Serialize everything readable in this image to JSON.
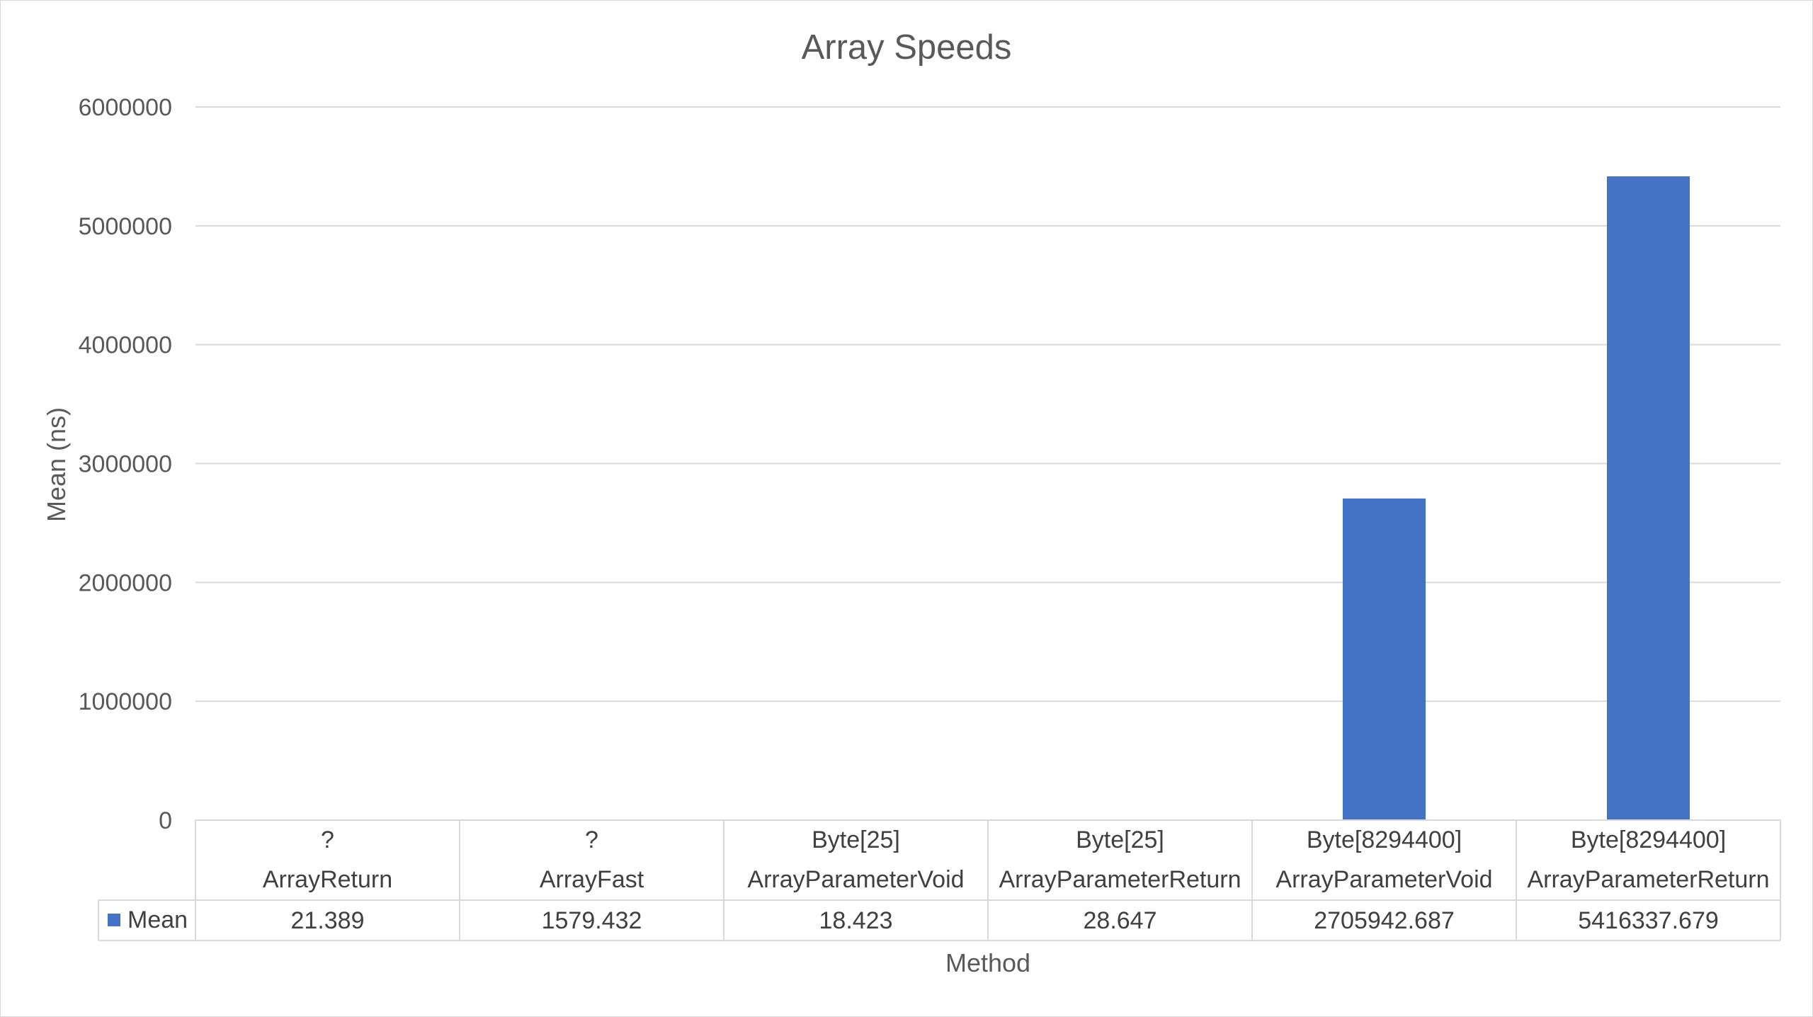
{
  "chart_data": {
    "type": "bar",
    "title": "Array Speeds",
    "xlabel": "Method",
    "ylabel": "Mean (ns)",
    "ylim": [
      0,
      6000000
    ],
    "yticks": [
      "0",
      "1000000",
      "2000000",
      "3000000",
      "4000000",
      "5000000",
      "6000000"
    ],
    "grid": true,
    "legend": "data-table",
    "categories": [
      {
        "group": "?",
        "label": "ArrayReturn"
      },
      {
        "group": "?",
        "label": "ArrayFast"
      },
      {
        "group": "Byte[25]",
        "label": "ArrayParameterVoid"
      },
      {
        "group": "Byte[25]",
        "label": "ArrayParameterReturn"
      },
      {
        "group": "Byte[8294400]",
        "label": "ArrayParameterVoid"
      },
      {
        "group": "Byte[8294400]",
        "label": "ArrayParameterReturn"
      }
    ],
    "series": [
      {
        "name": "Mean",
        "color": "#4472c4",
        "values": [
          21.389,
          1579.432,
          18.423,
          28.647,
          2705942.687,
          5416337.679
        ],
        "value_labels": [
          "21.389",
          "1579.432",
          "18.423",
          "28.647",
          "2705942.687",
          "5416337.679"
        ]
      }
    ]
  }
}
